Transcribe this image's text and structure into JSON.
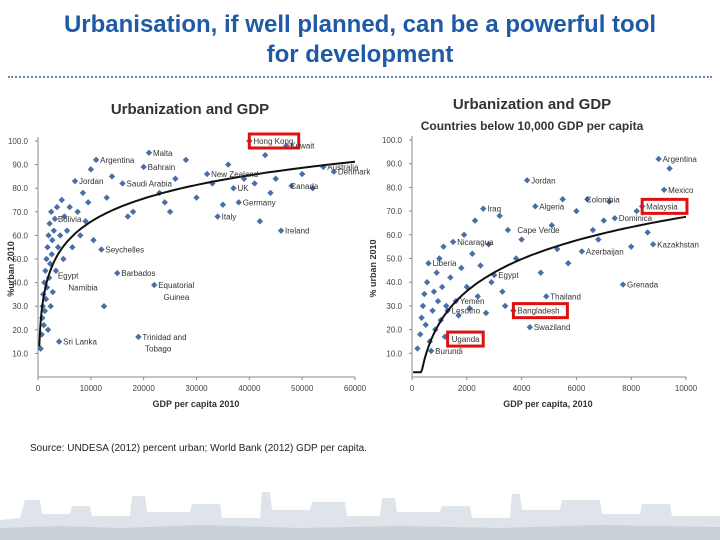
{
  "slide": {
    "title_line1": "Urbanisation, if well planned, can be a powerful tool",
    "title_line2": "for development",
    "source": "Source: UNDESA (2012) percent urban; World Bank (2012) GDP per capita."
  },
  "colors": {
    "title": "#1f5aa6",
    "marker": "#4a6fa8",
    "trend": "#111111",
    "highlight": "#e01010"
  },
  "chart_data": [
    {
      "type": "scatter",
      "title": "Urbanization and GDP",
      "subtitle": "",
      "xlabel": "GDP per capita 2010",
      "ylabel": "%urban 2010",
      "xlim": [
        0,
        60000
      ],
      "ylim": [
        0,
        100
      ],
      "xticks": [
        "0",
        "10000",
        "20000",
        "30000",
        "40000",
        "50000",
        "60000"
      ],
      "yticks": [
        "10.0",
        "20.0",
        "30.0",
        "40.0",
        "50.0",
        "60.0",
        "70.0",
        "80.0",
        "90.0",
        "100.0"
      ],
      "trend_label": "",
      "labels": [
        {
          "text": "Hong Kong",
          "x": 40000,
          "y": 100,
          "highlight": true
        },
        {
          "text": "Kuwait",
          "x": 47000,
          "y": 98
        },
        {
          "text": "Malta",
          "x": 21000,
          "y": 95
        },
        {
          "text": "Argentina",
          "x": 11000,
          "y": 92
        },
        {
          "text": "Bahrain",
          "x": 20000,
          "y": 89
        },
        {
          "text": "Australia",
          "x": 54000,
          "y": 89
        },
        {
          "text": "Jordan",
          "x": 7000,
          "y": 83
        },
        {
          "text": "New Zealand",
          "x": 32000,
          "y": 86
        },
        {
          "text": "Denmark",
          "x": 56000,
          "y": 87
        },
        {
          "text": "Saudi Arabia",
          "x": 16000,
          "y": 82
        },
        {
          "text": "UK",
          "x": 37000,
          "y": 80
        },
        {
          "text": "Canada",
          "x": 47000,
          "y": 81
        },
        {
          "text": "Germany",
          "x": 38000,
          "y": 74
        },
        {
          "text": "Bolivia",
          "x": 3000,
          "y": 67
        },
        {
          "text": "Italy",
          "x": 34000,
          "y": 68
        },
        {
          "text": "Ireland",
          "x": 46000,
          "y": 62
        },
        {
          "text": "Seychelles",
          "x": 12000,
          "y": 54
        },
        {
          "text": "Egypt",
          "x": 3000,
          "y": 43
        },
        {
          "text": "Barbados",
          "x": 15000,
          "y": 44
        },
        {
          "text": "Namibia",
          "x": 5000,
          "y": 38
        },
        {
          "text": "Equatorial",
          "x": 22000,
          "y": 39
        },
        {
          "text": "Guinea",
          "x": 23000,
          "y": 34
        },
        {
          "text": "Sri Lanka",
          "x": 4000,
          "y": 15
        },
        {
          "text": "Trinidad and",
          "x": 19000,
          "y": 17
        },
        {
          "text": "Tobago",
          "x": 19500,
          "y": 12
        }
      ],
      "points": [
        {
          "x": 500,
          "y": 12
        },
        {
          "x": 700,
          "y": 18
        },
        {
          "x": 800,
          "y": 25
        },
        {
          "x": 900,
          "y": 30
        },
        {
          "x": 1000,
          "y": 35
        },
        {
          "x": 1100,
          "y": 22
        },
        {
          "x": 1200,
          "y": 40
        },
        {
          "x": 1300,
          "y": 28
        },
        {
          "x": 1400,
          "y": 45
        },
        {
          "x": 1500,
          "y": 33
        },
        {
          "x": 1600,
          "y": 50
        },
        {
          "x": 1700,
          "y": 38
        },
        {
          "x": 1800,
          "y": 55
        },
        {
          "x": 1900,
          "y": 20
        },
        {
          "x": 2000,
          "y": 60
        },
        {
          "x": 2100,
          "y": 42
        },
        {
          "x": 2200,
          "y": 65
        },
        {
          "x": 2300,
          "y": 48
        },
        {
          "x": 2400,
          "y": 30
        },
        {
          "x": 2500,
          "y": 70
        },
        {
          "x": 2600,
          "y": 52
        },
        {
          "x": 2700,
          "y": 58
        },
        {
          "x": 2800,
          "y": 36
        },
        {
          "x": 3000,
          "y": 62
        },
        {
          "x": 3200,
          "y": 67
        },
        {
          "x": 3400,
          "y": 45
        },
        {
          "x": 3600,
          "y": 72
        },
        {
          "x": 3800,
          "y": 55
        },
        {
          "x": 4000,
          "y": 15
        },
        {
          "x": 4200,
          "y": 60
        },
        {
          "x": 4500,
          "y": 75
        },
        {
          "x": 4800,
          "y": 50
        },
        {
          "x": 5000,
          "y": 68
        },
        {
          "x": 5500,
          "y": 62
        },
        {
          "x": 6000,
          "y": 72
        },
        {
          "x": 6500,
          "y": 55
        },
        {
          "x": 7000,
          "y": 83
        },
        {
          "x": 7500,
          "y": 70
        },
        {
          "x": 8000,
          "y": 60
        },
        {
          "x": 8500,
          "y": 78
        },
        {
          "x": 9000,
          "y": 66
        },
        {
          "x": 9500,
          "y": 74
        },
        {
          "x": 10000,
          "y": 88
        },
        {
          "x": 10500,
          "y": 58
        },
        {
          "x": 11000,
          "y": 92
        },
        {
          "x": 12000,
          "y": 54
        },
        {
          "x": 12500,
          "y": 30
        },
        {
          "x": 13000,
          "y": 76
        },
        {
          "x": 14000,
          "y": 85
        },
        {
          "x": 15000,
          "y": 44
        },
        {
          "x": 16000,
          "y": 82
        },
        {
          "x": 17000,
          "y": 68
        },
        {
          "x": 18000,
          "y": 70
        },
        {
          "x": 19000,
          "y": 17
        },
        {
          "x": 20000,
          "y": 89
        },
        {
          "x": 21000,
          "y": 95
        },
        {
          "x": 22000,
          "y": 39
        },
        {
          "x": 23000,
          "y": 78
        },
        {
          "x": 24000,
          "y": 74
        },
        {
          "x": 25000,
          "y": 70
        },
        {
          "x": 26000,
          "y": 84
        },
        {
          "x": 28000,
          "y": 92
        },
        {
          "x": 30000,
          "y": 76
        },
        {
          "x": 32000,
          "y": 86
        },
        {
          "x": 33000,
          "y": 82
        },
        {
          "x": 34000,
          "y": 68
        },
        {
          "x": 35000,
          "y": 73
        },
        {
          "x": 36000,
          "y": 90
        },
        {
          "x": 37000,
          "y": 80
        },
        {
          "x": 38000,
          "y": 74
        },
        {
          "x": 39000,
          "y": 84
        },
        {
          "x": 40000,
          "y": 100
        },
        {
          "x": 41000,
          "y": 82
        },
        {
          "x": 42000,
          "y": 66
        },
        {
          "x": 43000,
          "y": 94
        },
        {
          "x": 44000,
          "y": 78
        },
        {
          "x": 45000,
          "y": 84
        },
        {
          "x": 46000,
          "y": 62
        },
        {
          "x": 47000,
          "y": 98
        },
        {
          "x": 48000,
          "y": 81
        },
        {
          "x": 50000,
          "y": 86
        },
        {
          "x": 52000,
          "y": 80
        },
        {
          "x": 54000,
          "y": 89
        },
        {
          "x": 56000,
          "y": 87
        }
      ]
    },
    {
      "type": "scatter",
      "title": "Urbanization and GDP",
      "subtitle": "Countries below 10,000 GDP per capita",
      "xlabel": "GDP per capita, 2010",
      "ylabel": "% urban 2010",
      "xlim": [
        0,
        10000
      ],
      "ylim": [
        0,
        100
      ],
      "xticks": [
        "0",
        "2000",
        "4000",
        "6000",
        "8000",
        "10000"
      ],
      "yticks": [
        "10.0",
        "20.0",
        "30.0",
        "40.0",
        "50.0",
        "60.0",
        "70.0",
        "80.0",
        "90.0",
        "100.0"
      ],
      "labels": [
        {
          "text": "Argentina",
          "x": 9000,
          "y": 92
        },
        {
          "text": "Mexico",
          "x": 9200,
          "y": 79
        },
        {
          "text": "Jordan",
          "x": 4200,
          "y": 83
        },
        {
          "text": "Colombia",
          "x": 6200,
          "y": 75
        },
        {
          "text": "Iraq",
          "x": 2600,
          "y": 71
        },
        {
          "text": "Algeria",
          "x": 4500,
          "y": 72
        },
        {
          "text": "Malaysia",
          "x": 8400,
          "y": 72,
          "highlight": true
        },
        {
          "text": "Dominica",
          "x": 7400,
          "y": 67
        },
        {
          "text": "Cape Verde",
          "x": 3700,
          "y": 62
        },
        {
          "text": "Nicaragua",
          "x": 1500,
          "y": 57
        },
        {
          "text": "Kazakhstan",
          "x": 8800,
          "y": 56
        },
        {
          "text": "Azerbaijan",
          "x": 6200,
          "y": 53
        },
        {
          "text": "Liberia",
          "x": 600,
          "y": 48
        },
        {
          "text": "Egypt",
          "x": 3000,
          "y": 43
        },
        {
          "text": "Thailand",
          "x": 4900,
          "y": 34
        },
        {
          "text": "Grenada",
          "x": 7700,
          "y": 39
        },
        {
          "text": "Yemen",
          "x": 1600,
          "y": 32
        },
        {
          "text": "Lesotho",
          "x": 1300,
          "y": 28
        },
        {
          "text": "Bangladesh",
          "x": 3700,
          "y": 28,
          "highlight": true
        },
        {
          "text": "Swaziland",
          "x": 4300,
          "y": 21
        },
        {
          "text": "Uganda",
          "x": 1300,
          "y": 16,
          "highlight": true
        },
        {
          "text": "Burundi",
          "x": 700,
          "y": 11
        }
      ],
      "points": [
        {
          "x": 200,
          "y": 12
        },
        {
          "x": 300,
          "y": 18
        },
        {
          "x": 350,
          "y": 25
        },
        {
          "x": 400,
          "y": 30
        },
        {
          "x": 450,
          "y": 35
        },
        {
          "x": 500,
          "y": 22
        },
        {
          "x": 550,
          "y": 40
        },
        {
          "x": 600,
          "y": 48
        },
        {
          "x": 650,
          "y": 15
        },
        {
          "x": 700,
          "y": 11
        },
        {
          "x": 750,
          "y": 28
        },
        {
          "x": 800,
          "y": 36
        },
        {
          "x": 850,
          "y": 20
        },
        {
          "x": 900,
          "y": 44
        },
        {
          "x": 950,
          "y": 32
        },
        {
          "x": 1000,
          "y": 50
        },
        {
          "x": 1050,
          "y": 24
        },
        {
          "x": 1100,
          "y": 38
        },
        {
          "x": 1150,
          "y": 55
        },
        {
          "x": 1200,
          "y": 17
        },
        {
          "x": 1250,
          "y": 30
        },
        {
          "x": 1300,
          "y": 28
        },
        {
          "x": 1400,
          "y": 42
        },
        {
          "x": 1500,
          "y": 57
        },
        {
          "x": 1600,
          "y": 32
        },
        {
          "x": 1700,
          "y": 26
        },
        {
          "x": 1800,
          "y": 46
        },
        {
          "x": 1900,
          "y": 60
        },
        {
          "x": 2000,
          "y": 38
        },
        {
          "x": 2100,
          "y": 29
        },
        {
          "x": 2200,
          "y": 52
        },
        {
          "x": 2300,
          "y": 66
        },
        {
          "x": 2400,
          "y": 34
        },
        {
          "x": 2500,
          "y": 47
        },
        {
          "x": 2600,
          "y": 71
        },
        {
          "x": 2700,
          "y": 27
        },
        {
          "x": 2800,
          "y": 56
        },
        {
          "x": 2900,
          "y": 40
        },
        {
          "x": 3000,
          "y": 43
        },
        {
          "x": 3200,
          "y": 68
        },
        {
          "x": 3300,
          "y": 36
        },
        {
          "x": 3400,
          "y": 30
        },
        {
          "x": 3500,
          "y": 62
        },
        {
          "x": 3700,
          "y": 28
        },
        {
          "x": 3800,
          "y": 50
        },
        {
          "x": 4000,
          "y": 58
        },
        {
          "x": 4200,
          "y": 83
        },
        {
          "x": 4300,
          "y": 21
        },
        {
          "x": 4500,
          "y": 72
        },
        {
          "x": 4700,
          "y": 44
        },
        {
          "x": 4900,
          "y": 34
        },
        {
          "x": 5100,
          "y": 64
        },
        {
          "x": 5300,
          "y": 54
        },
        {
          "x": 5500,
          "y": 75
        },
        {
          "x": 5700,
          "y": 48
        },
        {
          "x": 6000,
          "y": 70
        },
        {
          "x": 6200,
          "y": 53
        },
        {
          "x": 6400,
          "y": 75
        },
        {
          "x": 6600,
          "y": 62
        },
        {
          "x": 6800,
          "y": 58
        },
        {
          "x": 7000,
          "y": 66
        },
        {
          "x": 7200,
          "y": 74
        },
        {
          "x": 7400,
          "y": 67
        },
        {
          "x": 7700,
          "y": 39
        },
        {
          "x": 8000,
          "y": 55
        },
        {
          "x": 8200,
          "y": 70
        },
        {
          "x": 8400,
          "y": 72
        },
        {
          "x": 8600,
          "y": 61
        },
        {
          "x": 8800,
          "y": 56
        },
        {
          "x": 9000,
          "y": 92
        },
        {
          "x": 9200,
          "y": 79
        },
        {
          "x": 9400,
          "y": 88
        }
      ]
    }
  ]
}
